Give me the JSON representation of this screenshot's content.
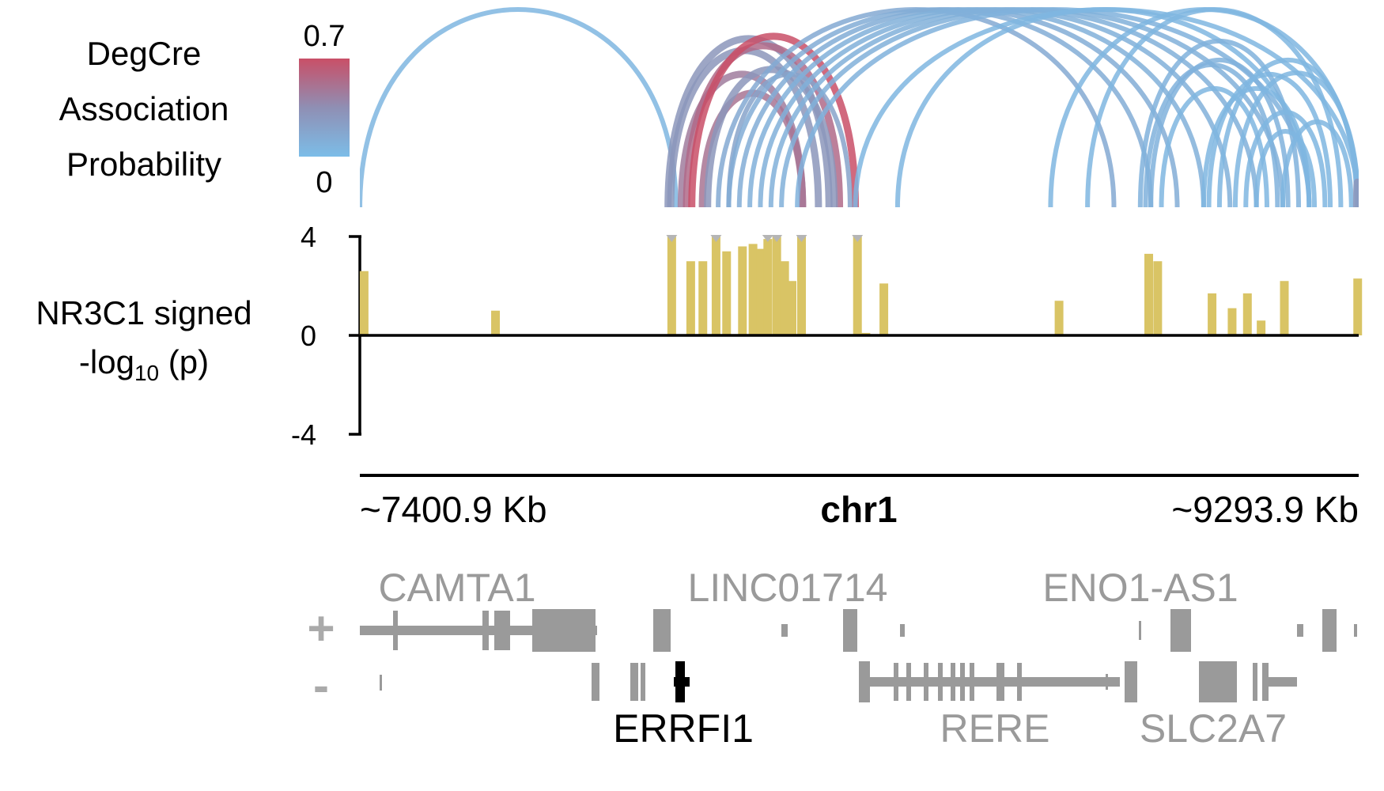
{
  "legend": {
    "title_lines": [
      "DegCre",
      "Association",
      "Probability"
    ],
    "scale_max": "0.7",
    "scale_min": "0",
    "colors": {
      "low": "#7cbde8",
      "mid": "#8f8fb4",
      "high": "#c94f67"
    }
  },
  "track": {
    "ylabel_line1": "NR3C1 signed",
    "ylabel_line2_prefix": "-log",
    "ylabel_line2_sub": "10",
    "ylabel_line2_suffix": " (p)",
    "ticks": [
      "4",
      "0",
      "-4"
    ],
    "ylim": [
      -4,
      4
    ],
    "bar_color": "#d9c465"
  },
  "axis": {
    "start_label": "~7400.9 Kb",
    "chrom_label": "chr1",
    "end_label": "~9293.9 Kb"
  },
  "genes": {
    "plus_strand": "+",
    "minus_strand": "-",
    "plus_labels": [
      "CAMTA1",
      "LINC01714",
      "ENO1-AS1"
    ],
    "minus_labels": [
      "ERRFI1",
      "RERE",
      "SLC2A7"
    ],
    "highlight_gene": "ERRFI1",
    "gene_color": "#9a9a9a",
    "highlight_color": "#000000"
  },
  "chart_data": {
    "type": "bar",
    "x_units": "Kb",
    "xlim": [
      7400.9,
      9293.9
    ],
    "ylim": [
      -4,
      4
    ],
    "bars": [
      {
        "x": 7403,
        "y": 2.6
      },
      {
        "x": 7652,
        "y": 1.0
      },
      {
        "x": 7986,
        "y": 4.0
      },
      {
        "x": 8022,
        "y": 3.0
      },
      {
        "x": 8045,
        "y": 3.0
      },
      {
        "x": 8070,
        "y": 4.0
      },
      {
        "x": 8090,
        "y": 3.4
      },
      {
        "x": 8120,
        "y": 3.6
      },
      {
        "x": 8140,
        "y": 3.7
      },
      {
        "x": 8155,
        "y": 3.5
      },
      {
        "x": 8168,
        "y": 3.9
      },
      {
        "x": 8185,
        "y": 4.0
      },
      {
        "x": 8200,
        "y": 3.0
      },
      {
        "x": 8214,
        "y": 2.2
      },
      {
        "x": 8232,
        "y": 4.0
      },
      {
        "x": 8338,
        "y": 4.0
      },
      {
        "x": 8354,
        "y": 0.1
      },
      {
        "x": 8388,
        "y": 2.1
      },
      {
        "x": 8720,
        "y": 1.4
      },
      {
        "x": 8890,
        "y": 3.3
      },
      {
        "x": 8907,
        "y": 3.0
      },
      {
        "x": 9010,
        "y": 1.7
      },
      {
        "x": 9048,
        "y": 1.1
      },
      {
        "x": 9077,
        "y": 1.7
      },
      {
        "x": 9103,
        "y": 0.6
      },
      {
        "x": 9147,
        "y": 2.2
      },
      {
        "x": 9286,
        "y": 2.3
      }
    ],
    "capped_at": [
      7986,
      8070,
      8168,
      8185,
      8232,
      8338
    ],
    "arcs": [
      {
        "from": 7401,
        "to": 8000,
        "p": 0.05
      },
      {
        "from": 7985,
        "to": 8290,
        "p": 0.3
      },
      {
        "from": 7990,
        "to": 8270,
        "p": 0.3
      },
      {
        "from": 8010,
        "to": 8240,
        "p": 0.45
      },
      {
        "from": 8020,
        "to": 8310,
        "p": 0.55
      },
      {
        "from": 8050,
        "to": 8240,
        "p": 0.5
      },
      {
        "from": 8030,
        "to": 8340,
        "p": 0.7
      },
      {
        "from": 8060,
        "to": 8300,
        "p": 0.3
      },
      {
        "from": 8100,
        "to": 8330,
        "p": 0.2
      },
      {
        "from": 8080,
        "to": 8830,
        "p": 0.15
      },
      {
        "from": 8100,
        "to": 8900,
        "p": 0.12
      },
      {
        "from": 8120,
        "to": 8950,
        "p": 0.12
      },
      {
        "from": 8140,
        "to": 9000,
        "p": 0.1
      },
      {
        "from": 8160,
        "to": 9050,
        "p": 0.1
      },
      {
        "from": 8180,
        "to": 9100,
        "p": 0.1
      },
      {
        "from": 8200,
        "to": 9150,
        "p": 0.1
      },
      {
        "from": 8230,
        "to": 9200,
        "p": 0.08
      },
      {
        "from": 8340,
        "to": 9293,
        "p": 0.05
      },
      {
        "from": 8420,
        "to": 9200,
        "p": 0.05
      },
      {
        "from": 8710,
        "to": 9293,
        "p": 0.05
      },
      {
        "from": 8780,
        "to": 9260,
        "p": 0.05
      },
      {
        "from": 8880,
        "to": 9180,
        "p": 0.08
      },
      {
        "from": 8890,
        "to": 9140,
        "p": 0.08
      },
      {
        "from": 8900,
        "to": 9160,
        "p": 0.08
      },
      {
        "from": 8920,
        "to": 9120,
        "p": 0.05
      },
      {
        "from": 9000,
        "to": 9200,
        "p": 0.05
      },
      {
        "from": 9010,
        "to": 9240,
        "p": 0.05
      },
      {
        "from": 9030,
        "to": 9290,
        "p": 0.05
      },
      {
        "from": 9060,
        "to": 9293,
        "p": 0.05
      },
      {
        "from": 9080,
        "to": 9230,
        "p": 0.05
      },
      {
        "from": 9100,
        "to": 9210,
        "p": 0.05
      },
      {
        "from": 9150,
        "to": 9280,
        "p": 0.05
      },
      {
        "from": 9290,
        "to": 9293,
        "p": 0.3
      }
    ]
  }
}
